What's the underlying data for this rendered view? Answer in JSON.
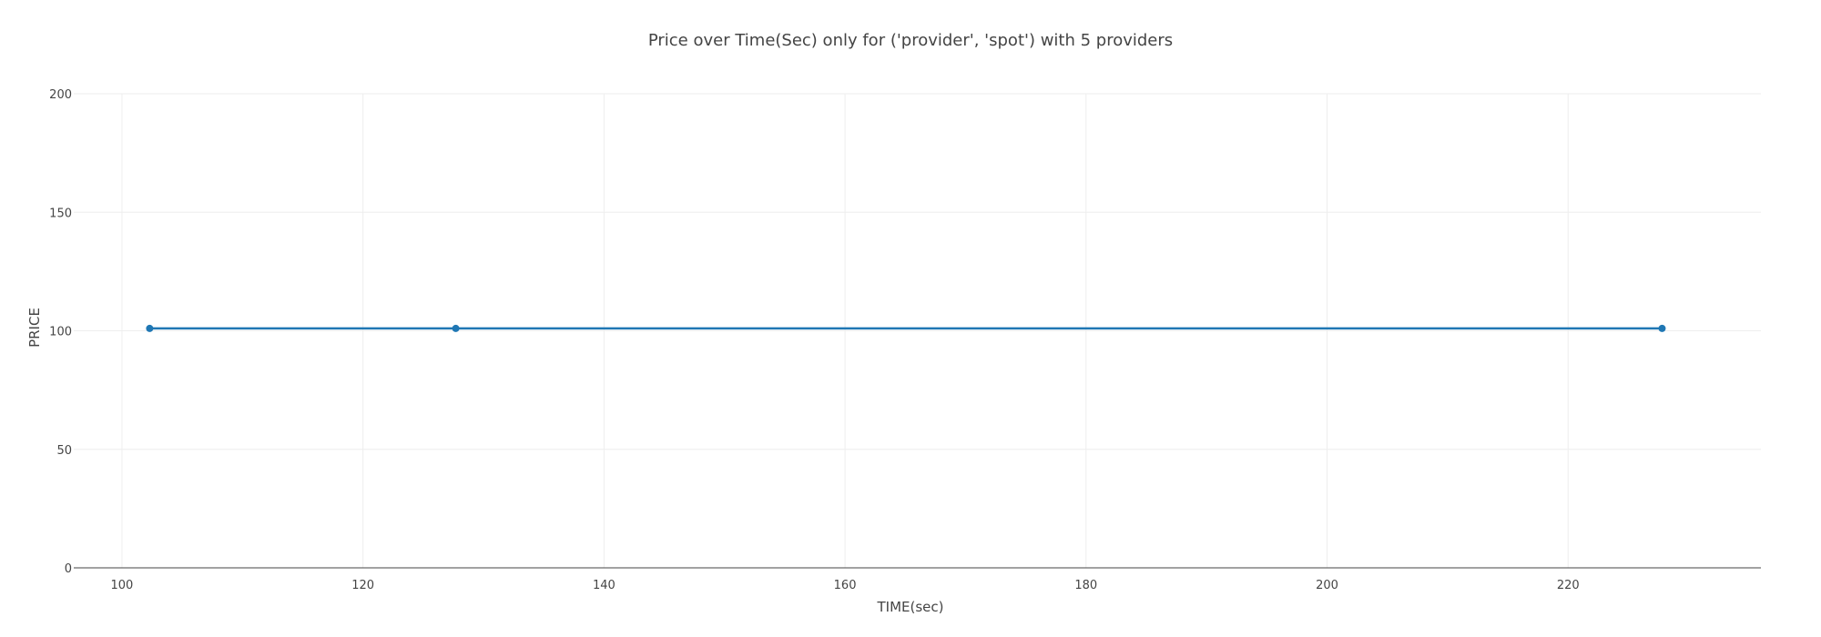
{
  "chart_data": {
    "type": "line",
    "title": "Price over Time(Sec) only for ('provider', 'spot') with 5 providers",
    "xlabel": "TIME(sec)",
    "ylabel": "PRICE",
    "xlim": [
      96,
      236
    ],
    "ylim": [
      0,
      200
    ],
    "xticks": [
      100,
      120,
      140,
      160,
      180,
      200,
      220
    ],
    "yticks": [
      0,
      50,
      100,
      150,
      200
    ],
    "grid": true,
    "legend": "none",
    "series": [
      {
        "color": "#1f77b4",
        "x": [
          102.3,
          127.7,
          227.8
        ],
        "y": [
          101,
          101,
          101
        ]
      }
    ]
  }
}
